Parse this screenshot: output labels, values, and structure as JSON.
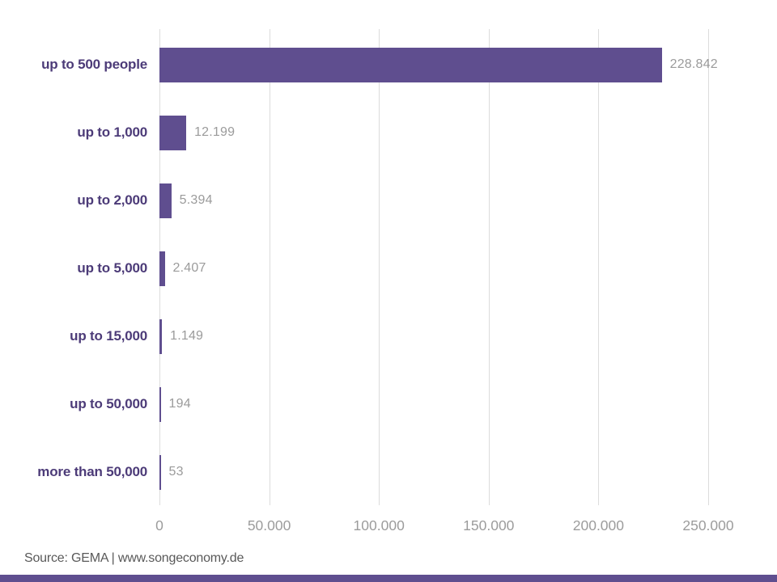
{
  "chart_data": {
    "type": "bar",
    "orientation": "horizontal",
    "title": "",
    "categories": [
      "up to 500 people",
      "up to 1,000",
      "up to 2,000",
      "up to 5,000",
      "up to 15,000",
      "up to 50,000",
      "more than 50,000"
    ],
    "values": [
      228842,
      12199,
      5394,
      2407,
      1149,
      194,
      53
    ],
    "value_labels": [
      "228.842",
      "12.199",
      "5.394",
      "2.407",
      "1.149",
      "194",
      "53"
    ],
    "x_axis": {
      "ticks": [
        0,
        50000,
        100000,
        150000,
        200000,
        250000
      ],
      "tick_labels": [
        "0",
        "50.000",
        "100.000",
        "150.000",
        "200.000",
        "250.000"
      ],
      "max": 250000
    },
    "ylabel": "",
    "xlabel": "",
    "grid": "vertical-gridlines-on",
    "legend": "none"
  },
  "colors": {
    "bar": "#5F4E8F",
    "category_label": "#4C3B78",
    "value_label": "#9B9B9B",
    "tick_label": "#9C9C9C",
    "gridline": "#DCDCDC",
    "source_text": "#595959",
    "footer_strip": "#5F4E8F"
  },
  "footer": {
    "source": "Source: GEMA | www.songeconomy.de"
  }
}
